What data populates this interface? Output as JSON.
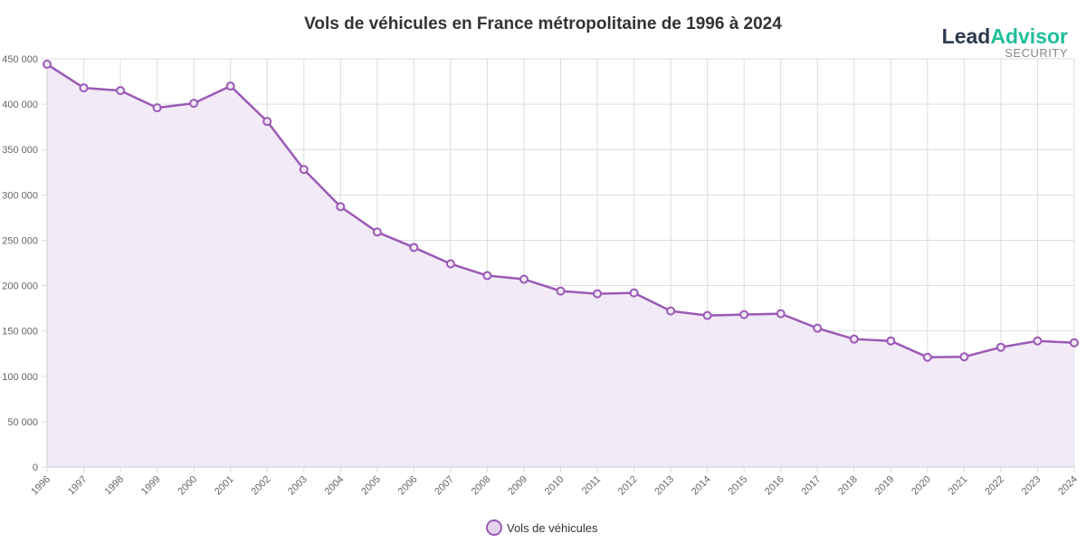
{
  "logo": {
    "part1": "Lead",
    "part2": "Advisor",
    "sub": "SECURITY"
  },
  "chart_data": {
    "type": "area",
    "title": "Vols de véhicules en France métropolitaine de 1996 à 2024",
    "xlabel": "",
    "ylabel": "",
    "categories": [
      "1996",
      "1997",
      "1998",
      "1999",
      "2000",
      "2001",
      "2002",
      "2003",
      "2004",
      "2005",
      "2006",
      "2007",
      "2008",
      "2009",
      "2010",
      "2011",
      "2012",
      "2013",
      "2014",
      "2015",
      "2016",
      "2017",
      "2018",
      "2019",
      "2020",
      "2021",
      "2022",
      "2023",
      "2024"
    ],
    "series": [
      {
        "name": "Vols de véhicules",
        "values": [
          444000,
          418000,
          415000,
          396000,
          401000,
          420000,
          381000,
          328000,
          287000,
          259000,
          242000,
          224000,
          211000,
          207000,
          194000,
          191000,
          192000,
          172000,
          167000,
          168000,
          169000,
          153000,
          141000,
          139000,
          121000,
          121500,
          132000,
          139000,
          137000
        ]
      }
    ],
    "ylim": [
      0,
      450000
    ],
    "yticks": [
      "0",
      "50 000",
      "100 000",
      "150 000",
      "200 000",
      "250 000",
      "300 000",
      "350 000",
      "400 000",
      "450 000"
    ],
    "grid": true,
    "legend": "bottom",
    "colors": {
      "line": "#9b59b6",
      "fill": "#f1e9f6",
      "grid": "#dddddd"
    }
  }
}
